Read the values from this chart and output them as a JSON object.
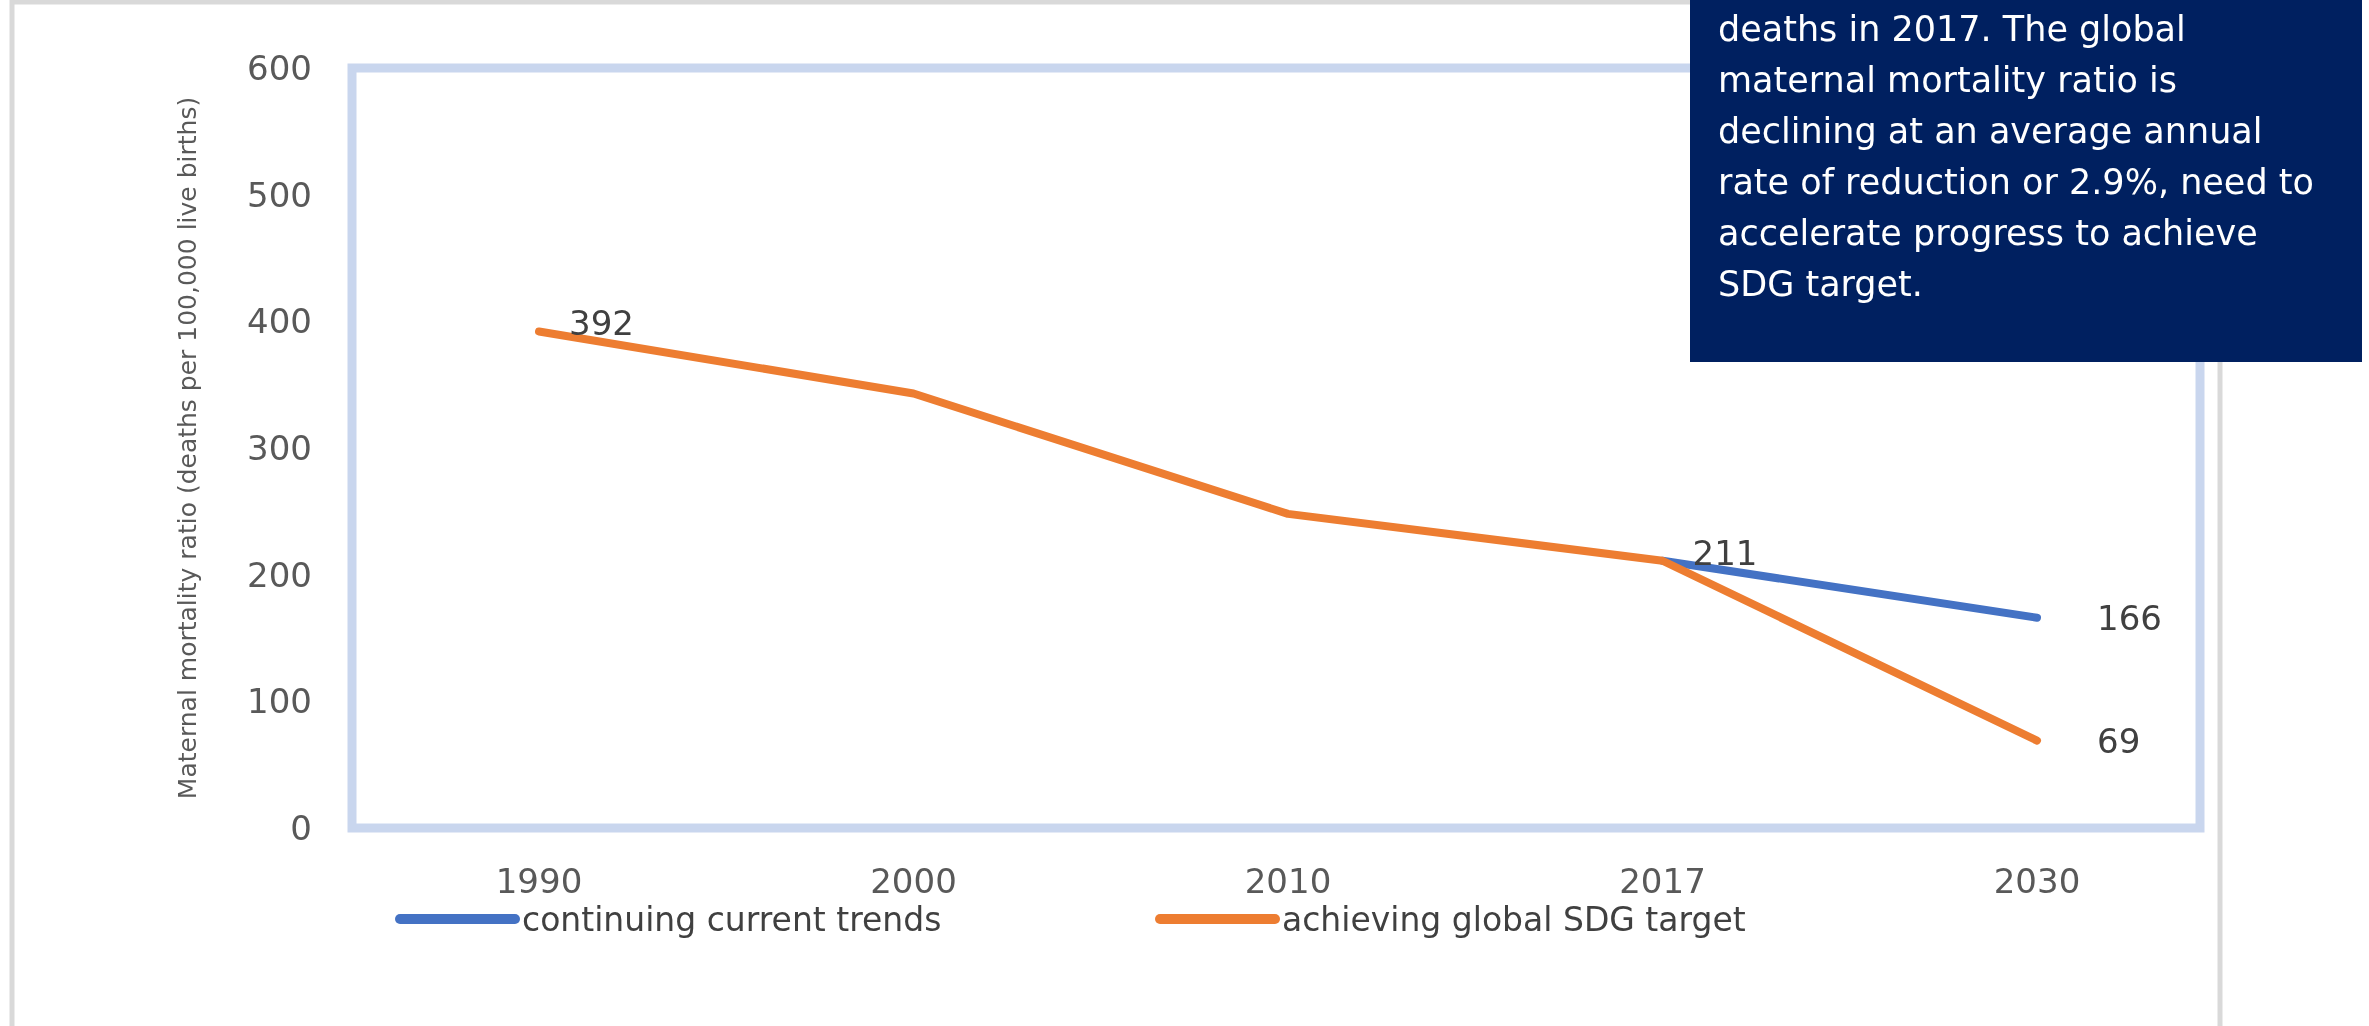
{
  "chart_data": {
    "type": "line",
    "ylabel": "Maternal mortality ratio (deaths per 100,000 live births)",
    "categories": [
      "1990",
      "2000",
      "2010",
      "2017",
      "2030"
    ],
    "ylim": [
      0,
      600
    ],
    "yticks": [
      0,
      100,
      200,
      300,
      400,
      500,
      600
    ],
    "grid": false,
    "legend": "bottom",
    "marker": "none",
    "line_style": "solid",
    "series": [
      {
        "name": "continuing current trends",
        "color": "#4472c4",
        "values": [
          null,
          null,
          null,
          211,
          166
        ],
        "value_labels": [
          null,
          null,
          null,
          "211",
          "166"
        ]
      },
      {
        "name": "achieving global SDG target",
        "color": "#ed7d31",
        "values": [
          392,
          343,
          248,
          211,
          69
        ],
        "value_labels": [
          "392",
          null,
          null,
          null,
          "69"
        ]
      }
    ],
    "annotations": [
      "deaths in 2017.  The global maternal mortality ratio is declining at an average annual rate of reduction or 2.9%, need to accelerate progress to achieve SDG target."
    ]
  }
}
